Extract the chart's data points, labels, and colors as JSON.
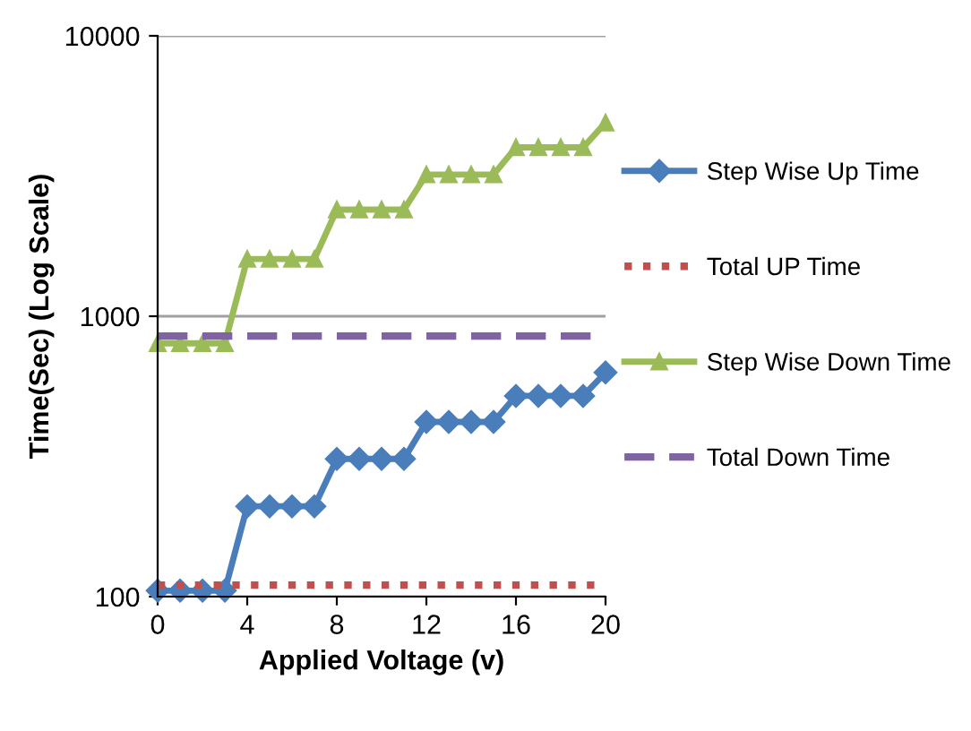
{
  "chart_data": {
    "type": "line",
    "xlabel": "Applied Voltage (v)",
    "ylabel": "Time(Sec) (Log Scale)",
    "log": true,
    "xlim": [
      0,
      20
    ],
    "xticks": [
      0,
      4,
      8,
      12,
      16,
      20
    ],
    "ylim": [
      100,
      10000
    ],
    "yticks": [
      100,
      1000,
      10000
    ],
    "grid": "y",
    "legend": "right",
    "series": [
      {
        "name": "Step Wise Up Time",
        "color": "#4a7ebb",
        "marker": "diamond",
        "line_style": "solid",
        "x": [
          0,
          1,
          2,
          3,
          4,
          5,
          6,
          7,
          8,
          9,
          10,
          11,
          12,
          13,
          14,
          15,
          16,
          17,
          18,
          19,
          20
        ],
        "values": [
          105,
          105,
          105,
          105,
          210,
          210,
          210,
          210,
          310,
          310,
          310,
          310,
          420,
          420,
          420,
          420,
          520,
          520,
          520,
          520,
          630
        ]
      },
      {
        "name": "Total UP Time",
        "color": "#c0504d",
        "marker": "none",
        "line_style": "dotted",
        "x": [
          0,
          20
        ],
        "values": [
          110,
          110
        ]
      },
      {
        "name": "Step Wise Down Time",
        "color": "#9bbb59",
        "marker": "triangle",
        "line_style": "solid",
        "x": [
          0,
          1,
          2,
          3,
          4,
          5,
          6,
          7,
          8,
          9,
          10,
          11,
          12,
          13,
          14,
          15,
          16,
          17,
          18,
          19,
          20
        ],
        "values": [
          800,
          800,
          800,
          800,
          1600,
          1600,
          1600,
          1600,
          2400,
          2400,
          2400,
          2400,
          3200,
          3200,
          3200,
          3200,
          4000,
          4000,
          4000,
          4000,
          4900
        ]
      },
      {
        "name": "Total Down Time",
        "color": "#8064a2",
        "marker": "none",
        "line_style": "dashed",
        "x": [
          0,
          20
        ],
        "values": [
          850,
          850
        ]
      }
    ]
  }
}
